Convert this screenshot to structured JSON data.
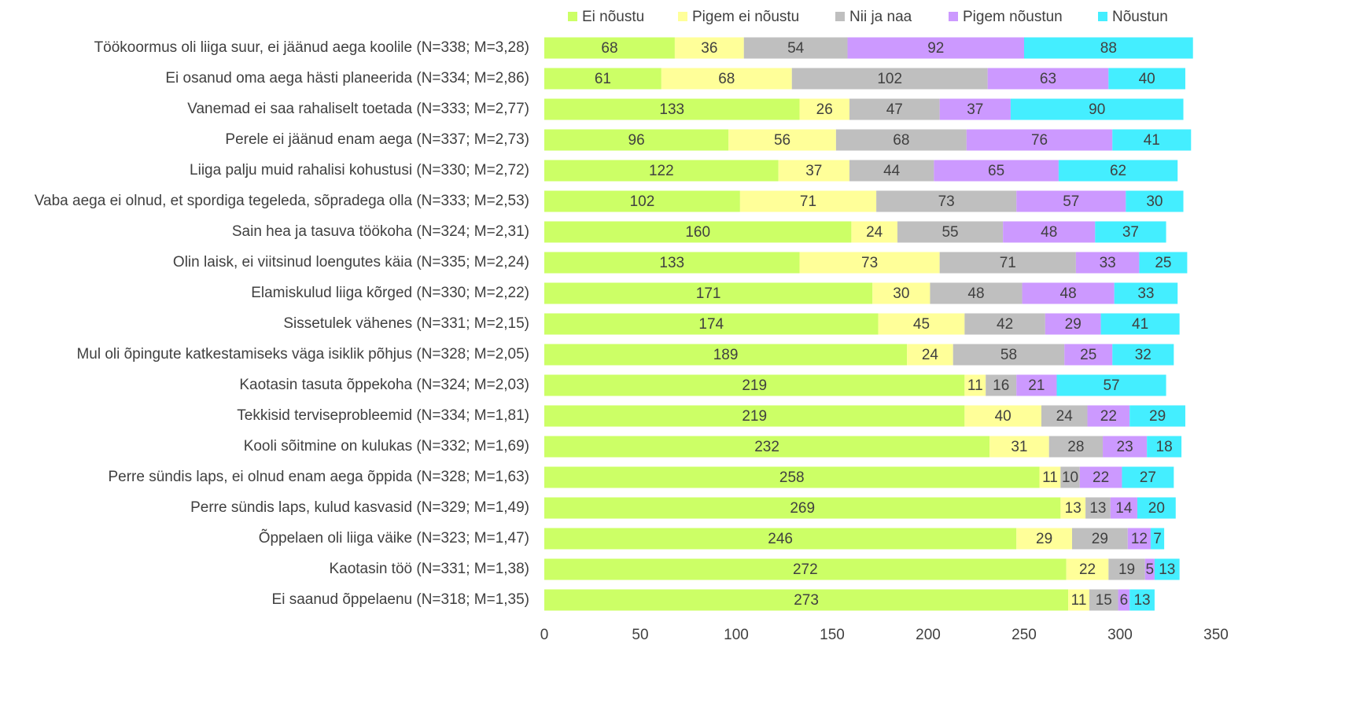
{
  "chart_data": {
    "type": "stacked_barh",
    "categories": [
      "Töökoormus oli liiga suur, ei jäänud aega koolile (N=338; M=3,28)",
      "Ei osanud oma aega hästi planeerida (N=334; M=2,86)",
      "Vanemad ei saa rahaliselt toetada (N=333; M=2,77)",
      "Perele ei jäänud enam aega (N=337; M=2,73)",
      "Liiga palju muid rahalisi kohustusi (N=330; M=2,72)",
      "Vaba aega ei olnud, et spordiga tegeleda, sõpradega olla (N=333; M=2,53)",
      "Sain hea ja tasuva töökoha (N=324; M=2,31)",
      "Olin laisk, ei viitsinud loengutes käia (N=335; M=2,24)",
      "Elamiskulud liiga kõrged (N=330; M=2,22)",
      "Sissetulek vähenes (N=331; M=2,15)",
      "Mul oli õpingute katkestamiseks väga isiklik põhjus (N=328; M=2,05)",
      "Kaotasin tasuta õppekoha (N=324; M=2,03)",
      "Tekkisid terviseprobleemid (N=334; M=1,81)",
      "Kooli sõitmine on kulukas (N=332; M=1,69)",
      "Perre sündis laps, ei olnud enam aega õppida (N=328; M=1,63)",
      "Perre sündis laps, kulud kasvasid (N=329; M=1,49)",
      "Õppelaen oli liiga väike (N=323; M=1,47)",
      "Kaotasin töö (N=331; M=1,38)",
      "Ei saanud õppelaenu (N=318; M=1,35)"
    ],
    "series": [
      {
        "name": "Ei nõustu",
        "color": "#ccff66",
        "values": [
          68,
          61,
          133,
          96,
          122,
          102,
          160,
          133,
          171,
          174,
          189,
          219,
          219,
          232,
          258,
          269,
          246,
          272,
          273
        ]
      },
      {
        "name": "Pigem ei nõustu",
        "color": "#ffff99",
        "values": [
          36,
          68,
          26,
          56,
          37,
          71,
          24,
          73,
          30,
          45,
          24,
          11,
          40,
          31,
          11,
          13,
          29,
          22,
          11
        ]
      },
      {
        "name": "Nii ja naa",
        "color": "#bfbfbf",
        "values": [
          54,
          102,
          47,
          68,
          44,
          73,
          55,
          71,
          48,
          42,
          58,
          16,
          24,
          28,
          10,
          13,
          29,
          19,
          15
        ]
      },
      {
        "name": "Pigem nõustun",
        "color": "#cc99ff",
        "values": [
          92,
          63,
          37,
          76,
          65,
          57,
          48,
          33,
          48,
          29,
          25,
          21,
          22,
          23,
          22,
          14,
          12,
          5,
          6
        ]
      },
      {
        "name": "Nõustun",
        "color": "#44eeff",
        "values": [
          88,
          40,
          90,
          41,
          62,
          30,
          37,
          25,
          33,
          41,
          32,
          57,
          29,
          18,
          27,
          20,
          7,
          13,
          13
        ]
      }
    ],
    "xlim": [
      0,
      350
    ],
    "xticks": [
      0,
      50,
      100,
      150,
      200,
      250,
      300,
      350
    ],
    "legend": "top"
  }
}
